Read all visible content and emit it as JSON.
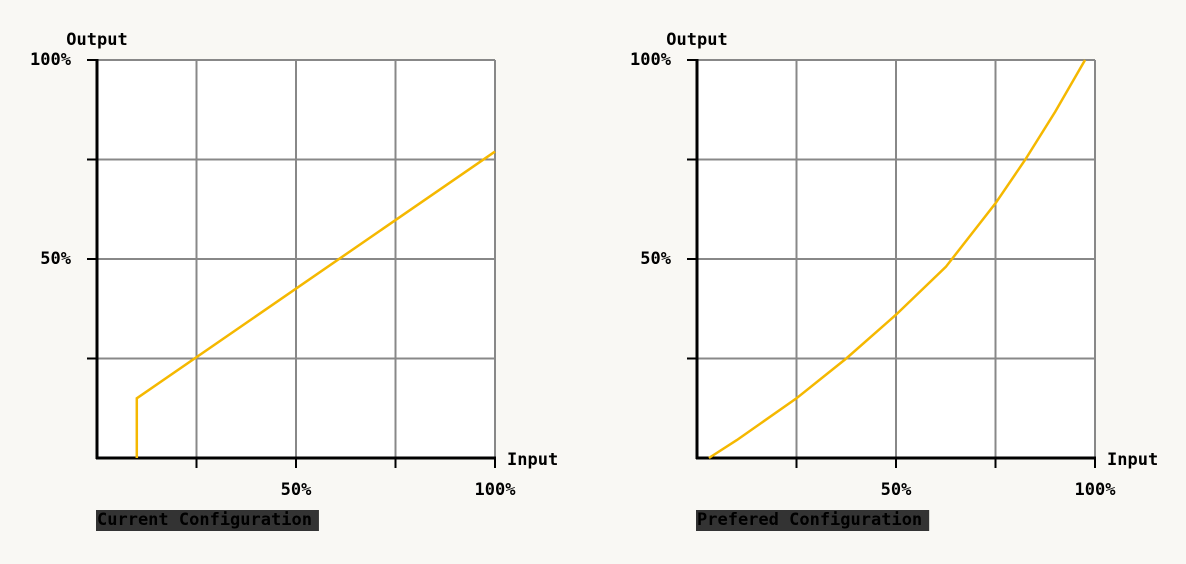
{
  "chart_data": [
    {
      "type": "line",
      "xlabel": "Input",
      "ylabel": "Output",
      "x": [
        10,
        10,
        100
      ],
      "series": [
        {
          "name": "Current Configuration",
          "color": "#f5b800",
          "values": [
            0,
            15,
            77
          ]
        }
      ],
      "xlim": [
        0,
        100
      ],
      "ylim": [
        0,
        100
      ],
      "xticks": [
        {
          "value": 25,
          "label": null
        },
        {
          "value": 50,
          "label": "50%"
        },
        {
          "value": 75,
          "label": null
        },
        {
          "value": 100,
          "label": "100%"
        }
      ],
      "yticks": [
        {
          "value": 25,
          "label": null
        },
        {
          "value": 50,
          "label": "50%"
        },
        {
          "value": 75,
          "label": null
        },
        {
          "value": 100,
          "label": "100%"
        }
      ],
      "grid": true
    },
    {
      "type": "line",
      "xlabel": "Input",
      "ylabel": "Output",
      "x": [
        3,
        10,
        25,
        37.5,
        50,
        62.5,
        75,
        82.5,
        90,
        97.5
      ],
      "series": [
        {
          "name": "Prefered Configuration",
          "color": "#f5b800",
          "values": [
            0,
            4.5,
            15,
            25,
            36,
            48,
            64,
            75,
            87,
            100
          ]
        }
      ],
      "xlim": [
        0,
        100
      ],
      "ylim": [
        0,
        100
      ],
      "xticks": [
        {
          "value": 25,
          "label": null
        },
        {
          "value": 50,
          "label": "50%"
        },
        {
          "value": 75,
          "label": null
        },
        {
          "value": 100,
          "label": "100%"
        }
      ],
      "yticks": [
        {
          "value": 25,
          "label": null
        },
        {
          "value": 50,
          "label": "50%"
        },
        {
          "value": 75,
          "label": null
        },
        {
          "value": 100,
          "label": "100%"
        }
      ],
      "grid": true
    }
  ]
}
